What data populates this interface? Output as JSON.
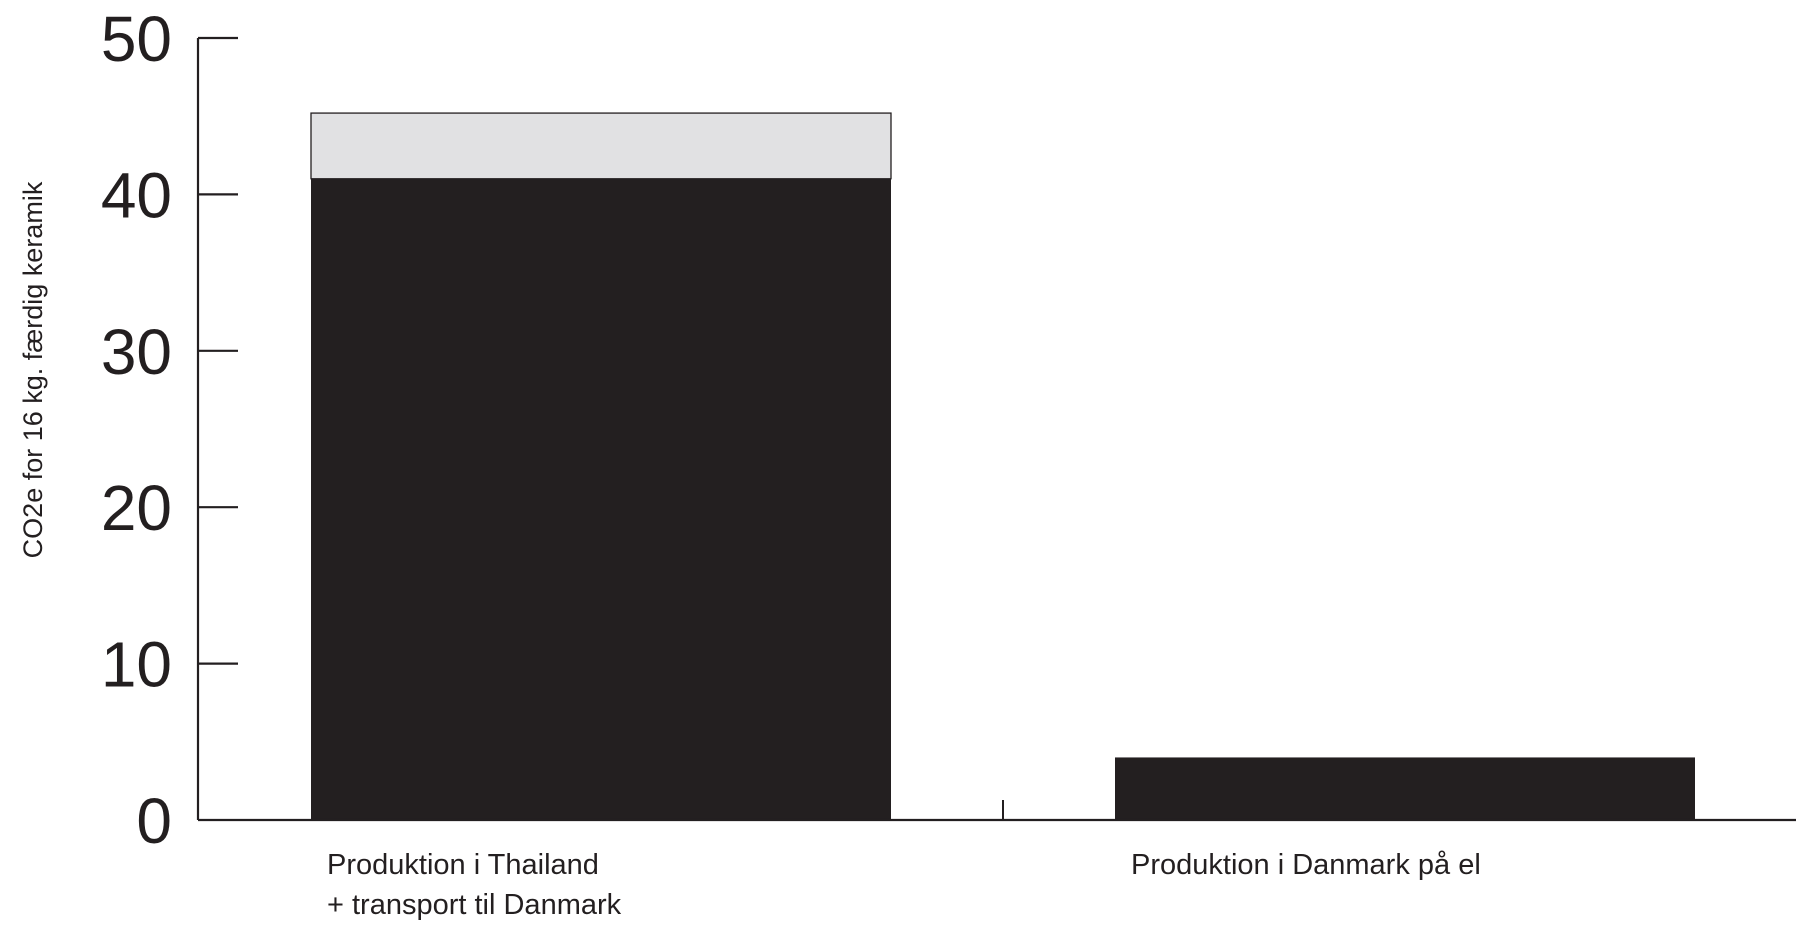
{
  "chart_data": {
    "type": "bar",
    "stacked": true,
    "title": "",
    "xlabel": "",
    "ylabel": "CO2e for 16 kg. færdig keramik",
    "ylim": [
      0,
      50
    ],
    "yticks": [
      0,
      10,
      20,
      30,
      40,
      50
    ],
    "grid": false,
    "categories": [
      [
        "Produktion i Thailand",
        "+ transport til Danmark"
      ],
      [
        "Produktion i Danmark på el"
      ]
    ],
    "series": [
      {
        "values": [
          41,
          4
        ],
        "color": "#231f20"
      },
      {
        "values": [
          4.2,
          0
        ],
        "color": "#e1e1e3"
      }
    ]
  },
  "colors": {
    "axis": "#231f20",
    "text": "#231f20"
  }
}
